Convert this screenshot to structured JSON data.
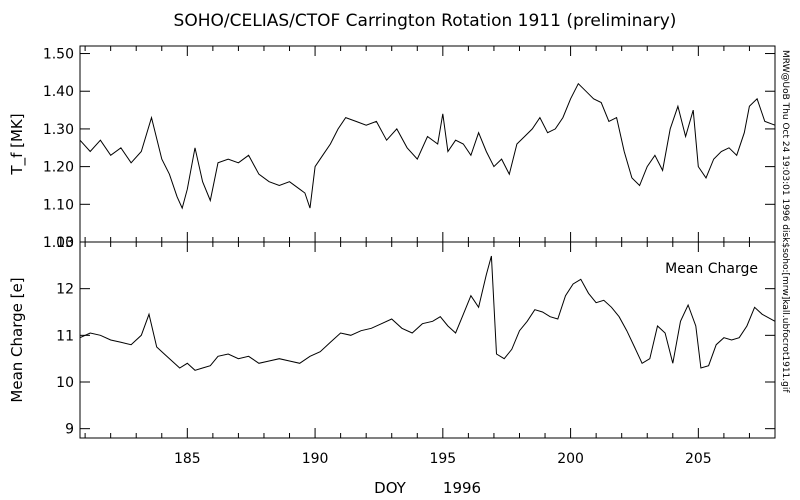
{
  "chart_data": {
    "type": "line",
    "title": "SOHO/CELIAS/CTOF Carrington Rotation 1911 (preliminary)",
    "xlabel": "DOY",
    "xlabel_year": "1996",
    "side_note": "MRW@UoB Thu Oct 24 19:03:01 1996 disk$soho:[mrw]kall.ubfocrot1911.gif",
    "xlim": [
      180.8,
      208.0
    ],
    "xticks": [
      185,
      190,
      195,
      200,
      205
    ],
    "panels": [
      {
        "id": "temperature",
        "ylabel": "T_f [MK]",
        "ylim": [
          1.0,
          1.52
        ],
        "yticks": [
          "1.00",
          "1.10",
          "1.20",
          "1.30",
          "1.40",
          "1.50"
        ],
        "annotation": "",
        "series": [
          {
            "x": [
              180.8,
              181.2,
              181.6,
              182.0,
              182.4,
              182.8,
              183.2,
              183.6,
              184.0,
              184.3,
              184.6,
              184.8,
              185.0,
              185.3,
              185.6,
              185.9,
              186.2,
              186.6,
              187.0,
              187.4,
              187.8,
              188.2,
              188.6,
              189.0,
              189.4,
              189.6,
              189.8,
              190.0,
              190.3,
              190.6,
              190.9,
              191.2,
              191.6,
              192.0,
              192.4,
              192.8,
              193.2,
              193.6,
              194.0,
              194.4,
              194.8,
              195.0,
              195.2,
              195.5,
              195.8,
              196.1,
              196.4,
              196.7,
              197.0,
              197.3,
              197.6,
              197.9,
              198.2,
              198.5,
              198.8,
              199.1,
              199.4,
              199.7,
              200.0,
              200.3,
              200.6,
              200.9,
              201.2,
              201.5,
              201.8,
              202.1,
              202.4,
              202.7,
              203.0,
              203.3,
              203.6,
              203.9,
              204.2,
              204.5,
              204.8,
              205.0,
              205.3,
              205.6,
              205.9,
              206.2,
              206.5,
              206.8,
              207.0,
              207.3,
              207.6,
              208.0
            ],
            "y": [
              1.27,
              1.24,
              1.27,
              1.23,
              1.25,
              1.21,
              1.24,
              1.33,
              1.22,
              1.18,
              1.12,
              1.09,
              1.14,
              1.25,
              1.16,
              1.11,
              1.21,
              1.22,
              1.21,
              1.23,
              1.18,
              1.16,
              1.15,
              1.16,
              1.14,
              1.13,
              1.09,
              1.2,
              1.23,
              1.26,
              1.3,
              1.33,
              1.32,
              1.31,
              1.32,
              1.27,
              1.3,
              1.25,
              1.22,
              1.28,
              1.26,
              1.34,
              1.24,
              1.27,
              1.26,
              1.23,
              1.29,
              1.24,
              1.2,
              1.22,
              1.18,
              1.26,
              1.28,
              1.3,
              1.33,
              1.29,
              1.3,
              1.33,
              1.38,
              1.42,
              1.4,
              1.38,
              1.37,
              1.32,
              1.33,
              1.24,
              1.17,
              1.15,
              1.2,
              1.23,
              1.19,
              1.3,
              1.36,
              1.28,
              1.35,
              1.2,
              1.17,
              1.22,
              1.24,
              1.25,
              1.23,
              1.29,
              1.36,
              1.38,
              1.32,
              1.31
            ]
          }
        ]
      },
      {
        "id": "charge",
        "ylabel": "Mean Charge [e]",
        "ylim": [
          8.8,
          13.0
        ],
        "yticks": [
          "9",
          "10",
          "11",
          "12",
          "13"
        ],
        "annotation": "Mean Charge",
        "series": [
          {
            "x": [
              180.8,
              181.2,
              181.6,
              182.0,
              182.4,
              182.8,
              183.2,
              183.5,
              183.8,
              184.1,
              184.4,
              184.7,
              185.0,
              185.3,
              185.6,
              185.9,
              186.2,
              186.6,
              187.0,
              187.4,
              187.8,
              188.2,
              188.6,
              189.0,
              189.4,
              189.8,
              190.2,
              190.6,
              191.0,
              191.4,
              191.8,
              192.2,
              192.6,
              193.0,
              193.4,
              193.8,
              194.2,
              194.6,
              194.9,
              195.2,
              195.5,
              195.8,
              196.1,
              196.4,
              196.7,
              196.9,
              197.1,
              197.4,
              197.7,
              198.0,
              198.3,
              198.6,
              198.9,
              199.2,
              199.5,
              199.8,
              200.1,
              200.4,
              200.7,
              201.0,
              201.3,
              201.6,
              201.9,
              202.2,
              202.5,
              202.8,
              203.1,
              203.4,
              203.7,
              204.0,
              204.3,
              204.6,
              204.9,
              205.1,
              205.4,
              205.7,
              206.0,
              206.3,
              206.6,
              206.9,
              207.2,
              207.5,
              208.0
            ],
            "y": [
              10.95,
              11.05,
              11.0,
              10.9,
              10.85,
              10.8,
              11.0,
              11.45,
              10.75,
              10.6,
              10.45,
              10.3,
              10.4,
              10.25,
              10.3,
              10.35,
              10.55,
              10.6,
              10.5,
              10.55,
              10.4,
              10.45,
              10.5,
              10.45,
              10.4,
              10.55,
              10.65,
              10.85,
              11.05,
              11.0,
              11.1,
              11.15,
              11.25,
              11.35,
              11.15,
              11.05,
              11.25,
              11.3,
              11.4,
              11.2,
              11.05,
              11.45,
              11.85,
              11.6,
              12.3,
              12.7,
              10.6,
              10.5,
              10.7,
              11.1,
              11.3,
              11.55,
              11.5,
              11.4,
              11.35,
              11.85,
              12.1,
              12.2,
              11.9,
              11.7,
              11.75,
              11.6,
              11.4,
              11.1,
              10.75,
              10.4,
              10.5,
              11.2,
              11.05,
              10.4,
              11.3,
              11.65,
              11.2,
              10.3,
              10.35,
              10.8,
              10.95,
              10.9,
              10.95,
              11.2,
              11.6,
              11.45,
              11.3
            ]
          }
        ]
      }
    ]
  }
}
